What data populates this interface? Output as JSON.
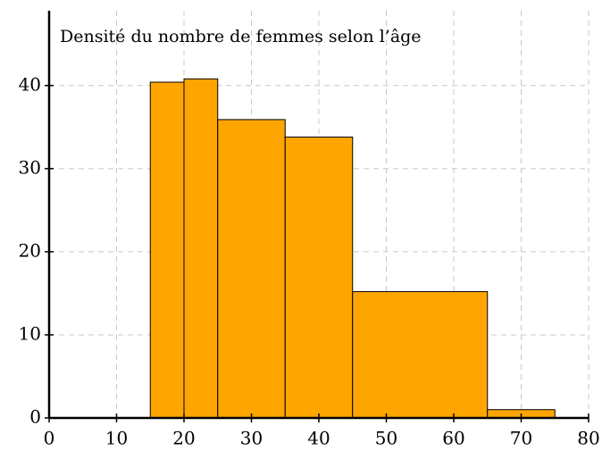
{
  "chart_data": {
    "type": "histogram",
    "title": "Densité du nombre de femmes selon l’âge",
    "bins": [
      15,
      20,
      25,
      35,
      45,
      65,
      75
    ],
    "values": [
      40.4,
      40.8,
      35.9,
      33.8,
      15.2,
      1.0
    ],
    "color": "#ffa500",
    "xlim": [
      0,
      80
    ],
    "xticks": [
      0,
      10,
      20,
      30,
      40,
      50,
      60,
      70,
      80
    ],
    "ylim": [
      0,
      49
    ],
    "yticks": [
      0,
      10,
      20,
      30,
      40
    ],
    "grid": true
  }
}
